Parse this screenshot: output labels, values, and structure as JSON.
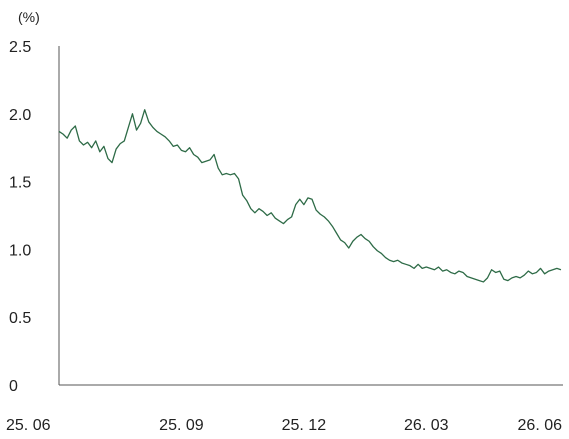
{
  "chart_data": {
    "type": "line",
    "unit_label": "(%)",
    "xlabel": "",
    "ylabel": "",
    "x_tick_labels": [
      "25. 06",
      "25. 09",
      "25. 12",
      "26. 03",
      "26. 06"
    ],
    "y_tick_labels": [
      "0",
      "0.5",
      "1.0",
      "1.5",
      "2.0",
      "2.5"
    ],
    "y_ticks": [
      0,
      0.5,
      1.0,
      1.5,
      2.0,
      2.5
    ],
    "ylim": [
      0,
      2.5
    ],
    "x_unit": "months since 25.06",
    "xlim": [
      0,
      12.35
    ],
    "grid": false,
    "legend": "none",
    "line_color": "#2e6b47",
    "series": [
      {
        "name": "",
        "x": [
          0.0,
          0.1,
          0.2,
          0.3,
          0.4,
          0.5,
          0.6,
          0.7,
          0.8,
          0.9,
          1.0,
          1.1,
          1.2,
          1.3,
          1.4,
          1.5,
          1.6,
          1.7,
          1.8,
          1.9,
          2.0,
          2.1,
          2.2,
          2.3,
          2.4,
          2.5,
          2.6,
          2.7,
          2.8,
          2.9,
          3.0,
          3.1,
          3.2,
          3.3,
          3.4,
          3.5,
          3.6,
          3.7,
          3.8,
          3.9,
          4.0,
          4.1,
          4.2,
          4.3,
          4.4,
          4.5,
          4.6,
          4.7,
          4.8,
          4.9,
          5.0,
          5.1,
          5.2,
          5.3,
          5.4,
          5.5,
          5.6,
          5.7,
          5.8,
          5.9,
          6.0,
          6.1,
          6.2,
          6.3,
          6.4,
          6.5,
          6.6,
          6.7,
          6.8,
          6.9,
          7.0,
          7.1,
          7.2,
          7.3,
          7.4,
          7.5,
          7.6,
          7.7,
          7.8,
          7.9,
          8.0,
          8.1,
          8.2,
          8.3,
          8.4,
          8.5,
          8.6,
          8.7,
          8.8,
          8.9,
          9.0,
          9.1,
          9.2,
          9.3,
          9.4,
          9.5,
          9.6,
          9.7,
          9.8,
          9.9,
          10.0,
          10.1,
          10.2,
          10.3,
          10.4,
          10.5,
          10.6,
          10.7,
          10.8,
          10.9,
          11.0,
          11.1,
          11.2,
          11.3,
          11.4,
          11.5,
          11.6,
          11.7,
          11.8,
          11.9,
          12.0,
          12.1,
          12.2,
          12.3
        ],
        "values": [
          1.87,
          1.85,
          1.82,
          1.88,
          1.91,
          1.8,
          1.77,
          1.79,
          1.75,
          1.8,
          1.72,
          1.76,
          1.67,
          1.64,
          1.74,
          1.78,
          1.8,
          1.9,
          2.0,
          1.88,
          1.93,
          2.03,
          1.94,
          1.9,
          1.87,
          1.85,
          1.83,
          1.8,
          1.76,
          1.77,
          1.73,
          1.72,
          1.75,
          1.7,
          1.68,
          1.64,
          1.65,
          1.66,
          1.7,
          1.6,
          1.55,
          1.56,
          1.55,
          1.56,
          1.52,
          1.4,
          1.36,
          1.3,
          1.27,
          1.3,
          1.28,
          1.25,
          1.27,
          1.23,
          1.21,
          1.19,
          1.22,
          1.24,
          1.33,
          1.37,
          1.33,
          1.38,
          1.37,
          1.29,
          1.26,
          1.24,
          1.21,
          1.17,
          1.12,
          1.07,
          1.05,
          1.01,
          1.06,
          1.09,
          1.11,
          1.08,
          1.06,
          1.02,
          0.99,
          0.97,
          0.94,
          0.92,
          0.91,
          0.92,
          0.9,
          0.89,
          0.88,
          0.86,
          0.89,
          0.86,
          0.87,
          0.86,
          0.85,
          0.87,
          0.84,
          0.85,
          0.83,
          0.82,
          0.84,
          0.83,
          0.8,
          0.79,
          0.78,
          0.77,
          0.76,
          0.79,
          0.85,
          0.83,
          0.84,
          0.78,
          0.77,
          0.79,
          0.8,
          0.79,
          0.81,
          0.84,
          0.82,
          0.83,
          0.86,
          0.82,
          0.84,
          0.85,
          0.86,
          0.85
        ]
      }
    ]
  }
}
